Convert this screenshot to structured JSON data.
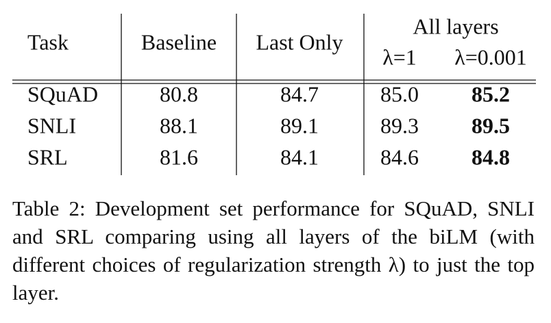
{
  "table": {
    "header": {
      "columns": [
        "Task",
        "Baseline",
        "Last Only",
        "All layers"
      ],
      "subcolumns": [
        "λ=1",
        "λ=0.001"
      ]
    },
    "rows": [
      [
        "SQuAD",
        "80.8",
        "84.7",
        "85.0",
        "85.2"
      ],
      [
        "SNLI",
        "88.1",
        "89.1",
        "89.3",
        "89.5"
      ],
      [
        "SRL",
        "81.6",
        "84.1",
        "84.6",
        "84.8"
      ]
    ]
  },
  "caption": "Table 2: Development set performance for SQuAD, SNLI and SRL comparing using all layers of the biLM (with different choices of regularization strength λ) to just the top layer."
}
